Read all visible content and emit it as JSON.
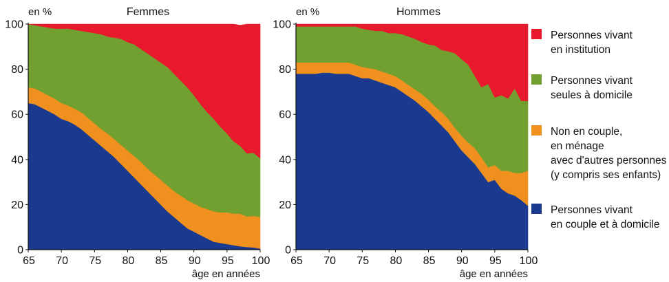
{
  "chart_data": [
    {
      "type": "area",
      "title": "Femmes",
      "ylabel": "en %",
      "xlabel": "âge en années",
      "x": [
        65,
        66,
        67,
        68,
        69,
        70,
        71,
        72,
        73,
        74,
        75,
        76,
        77,
        78,
        79,
        80,
        81,
        82,
        83,
        84,
        85,
        86,
        87,
        88,
        89,
        90,
        91,
        92,
        93,
        94,
        95,
        96,
        97,
        98,
        99,
        100
      ],
      "xticks": [
        65,
        70,
        75,
        80,
        85,
        90,
        95,
        100
      ],
      "yticks": [
        0,
        20,
        40,
        60,
        80,
        100
      ],
      "xlim": [
        65,
        100
      ],
      "ylim": [
        0,
        100
      ],
      "stacked": true,
      "series": [
        {
          "name": "Personnes vivant en couple et à domicile",
          "color": "#1a3a8f",
          "values": [
            65,
            64.5,
            63,
            61.5,
            60,
            58,
            57,
            55.5,
            53.5,
            51,
            48.5,
            46,
            43.5,
            41,
            38,
            35,
            32,
            29,
            26,
            23,
            20,
            17,
            14.5,
            12,
            9.5,
            8,
            6.5,
            5,
            3.5,
            3,
            2.5,
            2,
            1.5,
            1.2,
            1,
            0.5
          ]
        },
        {
          "name": "Non en couple, en ménage avec d'autres personnes (y compris ses enfants)",
          "color": "#f0901e",
          "values": [
            7,
            7,
            7,
            7,
            7,
            7,
            7,
            7,
            7.5,
            7.5,
            7.5,
            7.5,
            8,
            8,
            8.5,
            9,
            9.5,
            10,
            10,
            10.5,
            11,
            11.5,
            11.5,
            12,
            12.5,
            12.5,
            12.5,
            13,
            13.5,
            13.5,
            14,
            14,
            14.5,
            13.5,
            14,
            14
          ]
        },
        {
          "name": "Personnes vivant seules à domicile",
          "color": "#72a030",
          "values": [
            28,
            28,
            29,
            30,
            31,
            33,
            34,
            35,
            36,
            38,
            40,
            42,
            43,
            45,
            47,
            48,
            49.5,
            50,
            51,
            51.5,
            52,
            52.5,
            52,
            51,
            50,
            48,
            45.5,
            43,
            41,
            38,
            35,
            32,
            30,
            28,
            28,
            26
          ]
        },
        {
          "name": "Personnes vivant en institution",
          "color": "#e8192c",
          "values": [
            0,
            0.5,
            1,
            1.5,
            2,
            2,
            2,
            2.5,
            3,
            3.5,
            4,
            4.5,
            5.5,
            6,
            6.5,
            8,
            9,
            11,
            13,
            15,
            17,
            19,
            22,
            25,
            28,
            31.5,
            35.5,
            39,
            42,
            45.5,
            48.5,
            52,
            53.5,
            57.3,
            57,
            59.5
          ]
        }
      ]
    },
    {
      "type": "area",
      "title": "Hommes",
      "ylabel": "en %",
      "xlabel": "âge en années",
      "x": [
        65,
        66,
        67,
        68,
        69,
        70,
        71,
        72,
        73,
        74,
        75,
        76,
        77,
        78,
        79,
        80,
        81,
        82,
        83,
        84,
        85,
        86,
        87,
        88,
        89,
        90,
        91,
        92,
        93,
        94,
        95,
        96,
        97,
        98,
        99,
        100
      ],
      "xticks": [
        65,
        70,
        75,
        80,
        85,
        90,
        95,
        100
      ],
      "yticks": [
        0,
        20,
        40,
        60,
        80,
        100
      ],
      "xlim": [
        65,
        100
      ],
      "ylim": [
        0,
        100
      ],
      "stacked": true,
      "series": [
        {
          "name": "Personnes vivant en couple et à domicile",
          "color": "#1a3a8f",
          "values": [
            78,
            78,
            78,
            78,
            78.5,
            78.5,
            78,
            78,
            78,
            77,
            76,
            76,
            75,
            74,
            73,
            72,
            70,
            68,
            66,
            63.5,
            61,
            58,
            55,
            52,
            48,
            44,
            41,
            38,
            34,
            30,
            31,
            27,
            25,
            24,
            22,
            19.5
          ]
        },
        {
          "name": "Non en couple, en ménage avec d'autres personnes (y compris ses enfants)",
          "color": "#f0901e",
          "values": [
            5,
            5,
            5,
            5,
            4.5,
            4.5,
            5,
            5,
            5,
            5,
            5,
            4.5,
            5,
            5,
            5,
            5,
            5,
            5,
            5,
            5.5,
            5.5,
            5.5,
            6,
            6,
            6,
            6.5,
            6.5,
            7,
            7,
            6.5,
            6.5,
            8,
            10,
            10,
            12,
            15.5
          ]
        },
        {
          "name": "Personnes vivant seules à domicile",
          "color": "#72a030",
          "values": [
            16,
            16,
            16,
            16,
            16,
            16,
            16,
            16,
            16,
            17,
            17,
            17,
            17,
            18,
            18,
            19,
            20.5,
            21.5,
            22.5,
            23,
            24.5,
            27,
            27.5,
            30,
            33,
            34,
            34.5,
            32,
            31,
            37,
            30,
            33.5,
            32,
            37.5,
            32,
            31
          ]
        },
        {
          "name": "Personnes vivant en institution",
          "color": "#e8192c",
          "values": [
            1,
            1,
            1,
            1,
            1,
            1,
            1,
            1,
            1,
            1,
            2,
            2.5,
            3,
            3,
            4,
            4,
            4.5,
            5.5,
            6.5,
            8.5,
            9,
            9.5,
            11.5,
            12,
            13,
            15.5,
            18,
            23,
            28,
            26.5,
            32.5,
            31.5,
            33,
            28.5,
            34,
            34
          ]
        }
      ]
    }
  ],
  "legend": [
    {
      "text": "Personnes vivant\nen institution",
      "color": "#e8192c"
    },
    {
      "text": "Personnes vivant\nseules à domicile",
      "color": "#72a030"
    },
    {
      "text": "Non en couple,\nen ménage\navec d'autres personnes\n(y compris ses enfants)",
      "color": "#f0901e"
    },
    {
      "text": "Personnes vivant\nen couple et à domicile",
      "color": "#1a3a8f"
    }
  ]
}
